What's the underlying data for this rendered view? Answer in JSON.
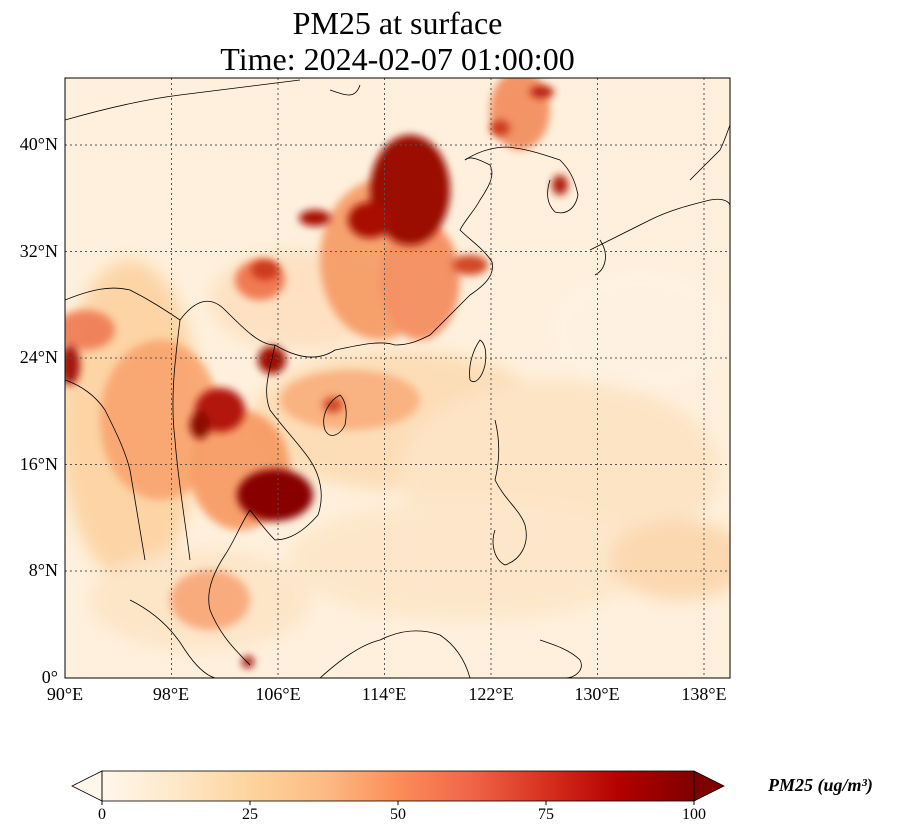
{
  "title": {
    "line1": "PM25 at surface",
    "line2": "Time: 2024-02-07 01:00:00"
  },
  "map": {
    "lat_labels": [
      "0°",
      "8°N",
      "16°N",
      "24°N",
      "32°N",
      "40°N"
    ],
    "lon_labels": [
      "90°E",
      "98°E",
      "106°E",
      "114°E",
      "122°E",
      "130°E",
      "138°E"
    ],
    "gridlines": "dotted",
    "colormap": "OrRd",
    "colors": {
      "low": "#fff7ec",
      "mid_low": "#fdd49e",
      "mid": "#fc8d59",
      "high": "#d7301f",
      "max": "#7f0000"
    }
  },
  "colorbar": {
    "ticks": [
      "0",
      "25",
      "50",
      "75",
      "100"
    ],
    "label": "PM25 (ug/m³)",
    "range": [
      0,
      100
    ],
    "extend": "both"
  }
}
